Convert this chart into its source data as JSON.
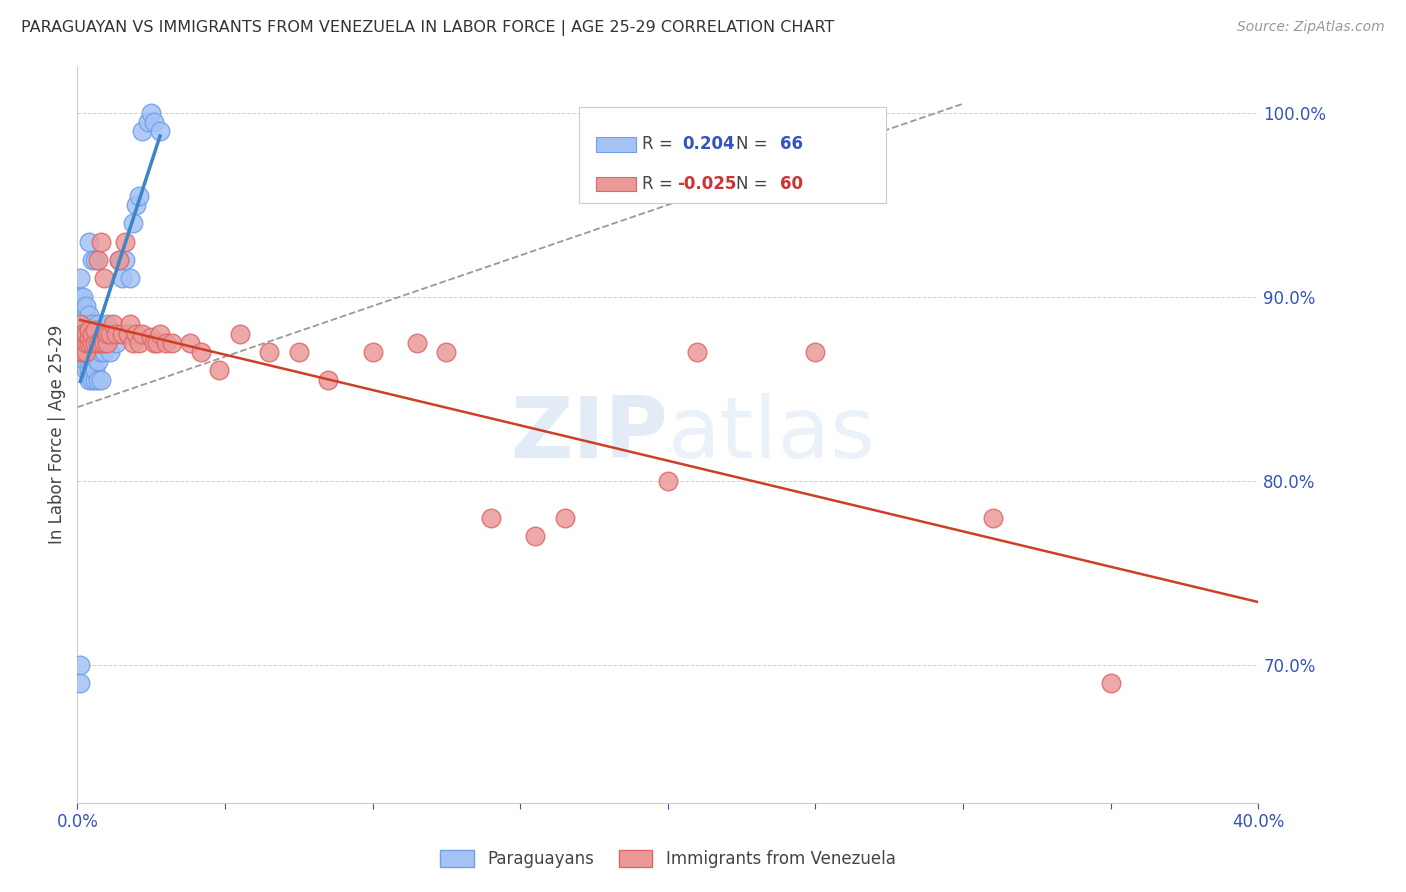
{
  "title": "PARAGUAYAN VS IMMIGRANTS FROM VENEZUELA IN LABOR FORCE | AGE 25-29 CORRELATION CHART",
  "source": "Source: ZipAtlas.com",
  "ylabel": "In Labor Force | Age 25-29",
  "xlim": [
    0.0,
    0.4
  ],
  "ylim": [
    0.625,
    1.025
  ],
  "blue_color": "#a4c2f4",
  "blue_edge_color": "#6d9eeb",
  "pink_color": "#ea9999",
  "pink_edge_color": "#e06666",
  "blue_line_color": "#3d85c8",
  "pink_line_color": "#cc4125",
  "dashed_line_color": "#999999",
  "legend_R_blue": "0.204",
  "legend_N_blue": "66",
  "legend_R_pink": "-0.025",
  "legend_N_pink": "60",
  "watermark": "ZIPatlas",
  "blue_scatter_x": [
    0.001,
    0.001,
    0.001,
    0.001,
    0.002,
    0.002,
    0.002,
    0.002,
    0.002,
    0.002,
    0.002,
    0.003,
    0.003,
    0.003,
    0.003,
    0.003,
    0.003,
    0.003,
    0.003,
    0.004,
    0.004,
    0.004,
    0.004,
    0.004,
    0.004,
    0.004,
    0.004,
    0.005,
    0.005,
    0.005,
    0.005,
    0.005,
    0.005,
    0.006,
    0.006,
    0.006,
    0.006,
    0.006,
    0.007,
    0.007,
    0.007,
    0.007,
    0.008,
    0.008,
    0.008,
    0.009,
    0.009,
    0.01,
    0.01,
    0.011,
    0.012,
    0.013,
    0.014,
    0.015,
    0.016,
    0.018,
    0.019,
    0.02,
    0.021,
    0.022,
    0.024,
    0.025,
    0.026,
    0.028,
    0.001,
    0.001
  ],
  "blue_scatter_y": [
    0.87,
    0.88,
    0.9,
    0.91,
    0.87,
    0.875,
    0.88,
    0.885,
    0.89,
    0.895,
    0.9,
    0.86,
    0.865,
    0.87,
    0.875,
    0.88,
    0.885,
    0.89,
    0.895,
    0.855,
    0.86,
    0.865,
    0.87,
    0.88,
    0.885,
    0.89,
    0.93,
    0.855,
    0.865,
    0.875,
    0.88,
    0.885,
    0.92,
    0.855,
    0.86,
    0.87,
    0.88,
    0.92,
    0.855,
    0.865,
    0.875,
    0.885,
    0.855,
    0.87,
    0.88,
    0.87,
    0.88,
    0.875,
    0.885,
    0.87,
    0.88,
    0.875,
    0.92,
    0.91,
    0.92,
    0.91,
    0.94,
    0.95,
    0.955,
    0.99,
    0.995,
    1.0,
    0.995,
    0.99,
    0.69,
    0.7
  ],
  "pink_scatter_x": [
    0.001,
    0.001,
    0.001,
    0.002,
    0.002,
    0.002,
    0.003,
    0.003,
    0.003,
    0.004,
    0.004,
    0.004,
    0.005,
    0.005,
    0.006,
    0.006,
    0.007,
    0.007,
    0.008,
    0.008,
    0.009,
    0.009,
    0.01,
    0.01,
    0.011,
    0.012,
    0.013,
    0.014,
    0.015,
    0.016,
    0.017,
    0.018,
    0.019,
    0.02,
    0.021,
    0.022,
    0.025,
    0.026,
    0.027,
    0.028,
    0.03,
    0.032,
    0.038,
    0.042,
    0.048,
    0.055,
    0.065,
    0.075,
    0.085,
    0.1,
    0.115,
    0.125,
    0.14,
    0.155,
    0.165,
    0.2,
    0.21,
    0.25,
    0.31,
    0.35
  ],
  "pink_scatter_y": [
    0.87,
    0.875,
    0.885,
    0.87,
    0.875,
    0.88,
    0.87,
    0.875,
    0.88,
    0.875,
    0.878,
    0.882,
    0.875,
    0.88,
    0.875,
    0.882,
    0.875,
    0.92,
    0.875,
    0.93,
    0.875,
    0.91,
    0.875,
    0.88,
    0.88,
    0.885,
    0.88,
    0.92,
    0.88,
    0.93,
    0.88,
    0.885,
    0.875,
    0.88,
    0.875,
    0.88,
    0.878,
    0.875,
    0.875,
    0.88,
    0.875,
    0.875,
    0.875,
    0.87,
    0.86,
    0.88,
    0.87,
    0.87,
    0.855,
    0.87,
    0.875,
    0.87,
    0.78,
    0.77,
    0.78,
    0.8,
    0.87,
    0.87,
    0.78,
    0.69
  ],
  "background_color": "#ffffff",
  "grid_color": "#d0d0d0"
}
